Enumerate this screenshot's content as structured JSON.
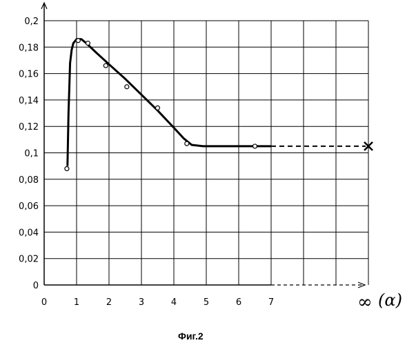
{
  "chart_data": {
    "type": "line",
    "title": "",
    "xlabel": "",
    "ylabel": "",
    "xlim": [
      0,
      10
    ],
    "ylim": [
      0,
      0.2
    ],
    "grid": true,
    "x_ticks": [
      0,
      1,
      2,
      3,
      4,
      5,
      6,
      7
    ],
    "x_tick_labels": [
      "0",
      "1",
      "2",
      "3",
      "4",
      "5",
      "6",
      "7"
    ],
    "y_ticks": [
      0,
      0.02,
      0.04,
      0.06,
      0.08,
      0.1,
      0.12,
      0.14,
      0.16,
      0.18,
      0.2
    ],
    "y_tick_labels": [
      "0",
      "0,02",
      "0,04",
      "0,06",
      "0,08",
      "0,1",
      "0,12",
      "0,14",
      "0,16",
      "0,18",
      "0,2"
    ],
    "infinity_label": "∞",
    "infinity_symbol": "(α)",
    "series": [
      {
        "points_x": [
          0.7,
          1.05,
          1.35,
          1.9,
          2.55,
          3.5,
          4.4,
          6.5
        ],
        "points_y": [
          0.088,
          0.185,
          0.183,
          0.166,
          0.15,
          0.134,
          0.107,
          0.105
        ],
        "curve_x": [
          0.72,
          0.75,
          0.8,
          0.85,
          0.9,
          1.0,
          1.15,
          1.3,
          1.6,
          2.0,
          2.5,
          3.0,
          3.5,
          4.0,
          4.3,
          4.55,
          4.9,
          5.5,
          6.5,
          7.0
        ],
        "curve_y": [
          0.09,
          0.13,
          0.168,
          0.178,
          0.183,
          0.186,
          0.186,
          0.183,
          0.176,
          0.167,
          0.156,
          0.144,
          0.132,
          0.119,
          0.111,
          0.106,
          0.105,
          0.105,
          0.105,
          0.105
        ],
        "asymptote_value": 0.105
      }
    ],
    "caption": "Фиг.2"
  }
}
